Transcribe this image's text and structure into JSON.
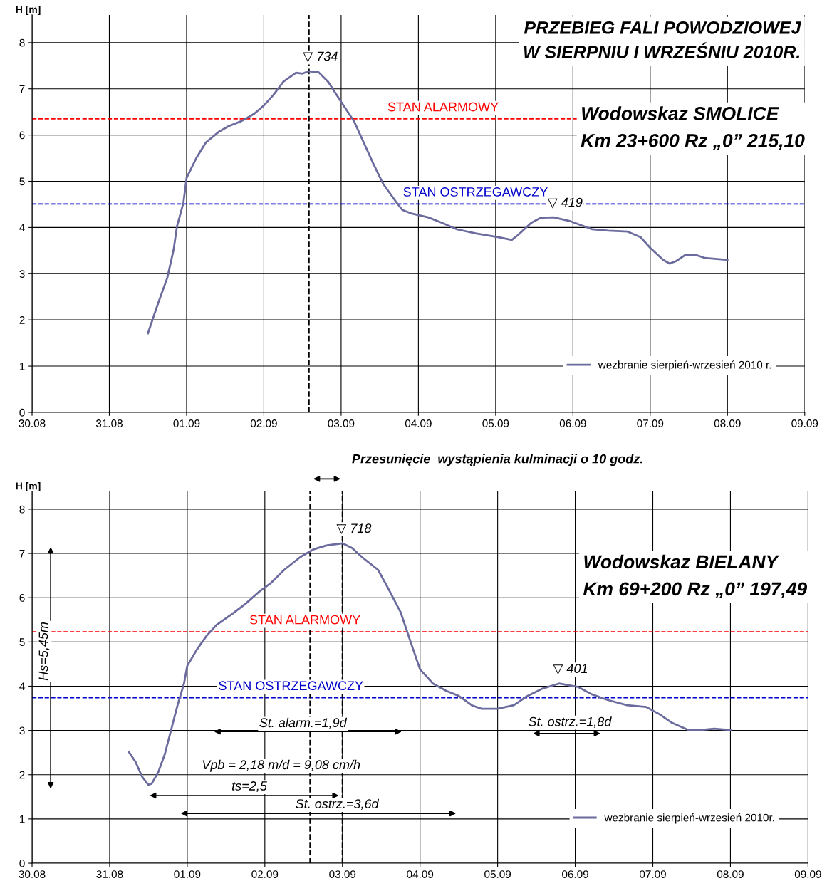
{
  "chart_data": [
    {
      "type": "line",
      "title": "PRZEBIEG FALI POWODZIOWEJ\nW SIERPNIU I WRZEŚNIU 2010R.",
      "subtitle": "Wodowskaz SMOLICE\nKm 23+600 Rz „0” 215,10",
      "ylabel": "H [m]",
      "xlim": [
        "2010-08-30",
        "2010-09-09"
      ],
      "ylim": [
        0,
        8.6
      ],
      "xticks": [
        {
          "value": "2010-08-30",
          "label": "30.08"
        },
        {
          "value": "2010-08-31",
          "label": "31.08"
        },
        {
          "value": "2010-09-01",
          "label": "01.09"
        },
        {
          "value": "2010-09-02",
          "label": "02.09"
        },
        {
          "value": "2010-09-03",
          "label": "03.09"
        },
        {
          "value": "2010-09-04",
          "label": "04.09"
        },
        {
          "value": "2010-09-05",
          "label": "05.09"
        },
        {
          "value": "2010-09-06",
          "label": "06.09"
        },
        {
          "value": "2010-09-07",
          "label": "07.09"
        },
        {
          "value": "2010-09-08",
          "label": "08.09"
        },
        {
          "value": "2010-09-09",
          "label": "09.09"
        }
      ],
      "yticks": [
        0,
        1,
        2,
        3,
        4,
        5,
        6,
        7,
        8
      ],
      "grid": true,
      "legend": "lower right",
      "marker": "none",
      "line_style": "solid",
      "series": [
        {
          "name": "wezbranie sierpień-wrzesień 2010 r.",
          "color": "#6b6b9e",
          "x": [
            "2010-08-31T12:00",
            "2010-08-31T15:00",
            "2010-08-31T18:00",
            "2010-08-31T20:00",
            "2010-08-31T21:00",
            "2010-08-31T23:00",
            "2010-09-01T00:00",
            "2010-09-01T03:00",
            "2010-09-01T06:00",
            "2010-09-01T10:00",
            "2010-09-01T13:00",
            "2010-09-01T17:00",
            "2010-09-01T21:00",
            "2010-09-02T00:00",
            "2010-09-02T03:00",
            "2010-09-02T06:00",
            "2010-09-02T10:00",
            "2010-09-02T12:00",
            "2010-09-02T14:00",
            "2010-09-02T17:00",
            "2010-09-02T20:00",
            "2010-09-03T00:00",
            "2010-09-03T04:00",
            "2010-09-03T07:00",
            "2010-09-03T10:00",
            "2010-09-03T13:00",
            "2010-09-03T17:00",
            "2010-09-03T19:00",
            "2010-09-03T22:00",
            "2010-09-04T03:00",
            "2010-09-04T07:00",
            "2010-09-04T12:00",
            "2010-09-04T18:00",
            "2010-09-05T01:00",
            "2010-09-05T05:00",
            "2010-09-05T07:00",
            "2010-09-05T11:00",
            "2010-09-05T14:00",
            "2010-09-05T18:00",
            "2010-09-05T23:00",
            "2010-09-06T06:00",
            "2010-09-06T11:00",
            "2010-09-06T17:00",
            "2010-09-06T21:00",
            "2010-09-07T00:00",
            "2010-09-07T04:00",
            "2010-09-07T06:00",
            "2010-09-07T08:00",
            "2010-09-07T11:00",
            "2010-09-07T14:00",
            "2010-09-07T17:00",
            "2010-09-08T00:00"
          ],
          "values": [
            1.71,
            2.33,
            2.91,
            3.53,
            4.02,
            4.53,
            5.07,
            5.5,
            5.84,
            6.07,
            6.19,
            6.3,
            6.46,
            6.64,
            6.87,
            7.15,
            7.35,
            7.33,
            7.38,
            7.36,
            7.15,
            6.72,
            6.3,
            5.84,
            5.38,
            4.95,
            4.56,
            4.38,
            4.3,
            4.22,
            4.11,
            3.96,
            3.87,
            3.79,
            3.73,
            3.84,
            4.1,
            4.21,
            4.22,
            4.14,
            3.96,
            3.93,
            3.91,
            3.79,
            3.56,
            3.3,
            3.22,
            3.27,
            3.41,
            3.41,
            3.34,
            3.3
          ]
        }
      ],
      "ref_lines": [
        {
          "axis": "y",
          "value": 6.35,
          "label": "STAN ALARMOWY",
          "color": "#ff0000",
          "line_style": "dashed"
        },
        {
          "axis": "y",
          "value": 4.51,
          "label": "STAN OSTRZEGAWCZY",
          "color": "#0000cc",
          "line_style": "dashed"
        },
        {
          "axis": "x",
          "value": "2010-09-02T14:00",
          "color": "#000000",
          "line_style": "dashed"
        }
      ],
      "annotations": [
        {
          "text": "▽ 734",
          "x": "2010-09-02T14:00",
          "y": 7.38
        },
        {
          "text": "▽ 419",
          "x": "2010-09-05T18:00",
          "y": 4.22
        }
      ]
    },
    {
      "type": "line",
      "title": "Wodowskaz BIELANY\nKm 69+200 Rz „0” 197,49",
      "ylabel": "H [m]",
      "xlim": [
        "2010-08-30",
        "2010-09-09"
      ],
      "ylim": [
        0,
        8.4
      ],
      "xticks": [
        {
          "value": "2010-08-30",
          "label": "30.08"
        },
        {
          "value": "2010-08-31",
          "label": "31.08"
        },
        {
          "value": "2010-09-01",
          "label": "01.09"
        },
        {
          "value": "2010-09-02",
          "label": "02.09"
        },
        {
          "value": "2010-09-03",
          "label": "03.09"
        },
        {
          "value": "2010-09-04",
          "label": "04.09"
        },
        {
          "value": "2010-09-05",
          "label": "05.09"
        },
        {
          "value": "2010-09-06",
          "label": "06.09"
        },
        {
          "value": "2010-09-07",
          "label": "07.09"
        },
        {
          "value": "2010-09-08",
          "label": "08.09"
        },
        {
          "value": "2010-09-09",
          "label": "09.09"
        }
      ],
      "yticks": [
        0,
        1,
        2,
        3,
        4,
        5,
        6,
        7,
        8
      ],
      "grid": true,
      "legend": "lower right",
      "marker": "none",
      "line_style": "solid",
      "series": [
        {
          "name": "wezbranie sierpień-wrzesień 2010r.",
          "color": "#6b6b9e",
          "x": [
            "2010-08-31T06:00",
            "2010-08-31T08:00",
            "2010-08-31T10:00",
            "2010-08-31T12:00",
            "2010-08-31T13:00",
            "2010-08-31T15:00",
            "2010-08-31T17:00",
            "2010-08-31T19:00",
            "2010-08-31T21:00",
            "2010-08-31T23:00",
            "2010-09-01T00:00",
            "2010-09-01T03:00",
            "2010-09-01T06:00",
            "2010-09-01T09:00",
            "2010-09-01T14:00",
            "2010-09-01T18:00",
            "2010-09-01T22:00",
            "2010-09-02T02:00",
            "2010-09-02T06:00",
            "2010-09-02T11:00",
            "2010-09-02T15:00",
            "2010-09-02T19:00",
            "2010-09-03T00:00",
            "2010-09-03T03:00",
            "2010-09-03T06:00",
            "2010-09-03T11:00",
            "2010-09-03T14:00",
            "2010-09-03T18:00",
            "2010-09-03T21:00",
            "2010-09-04T00:00",
            "2010-09-04T04:00",
            "2010-09-04T08:00",
            "2010-09-04T12:00",
            "2010-09-04T16:00",
            "2010-09-04T19:00",
            "2010-09-05T00:00",
            "2010-09-05T05:00",
            "2010-09-05T09:00",
            "2010-09-05T14:00",
            "2010-09-05T19:00",
            "2010-09-06T01:00",
            "2010-09-06T05:00",
            "2010-09-06T10:00",
            "2010-09-06T16:00",
            "2010-09-06T22:00",
            "2010-09-07T02:00",
            "2010-09-07T06:00",
            "2010-09-07T11:00",
            "2010-09-07T15:00",
            "2010-09-07T19:00",
            "2010-09-08T00:00"
          ],
          "values": [
            2.51,
            2.29,
            1.96,
            1.77,
            1.8,
            2.05,
            2.45,
            3.01,
            3.57,
            4.06,
            4.46,
            4.83,
            5.14,
            5.38,
            5.64,
            5.86,
            6.12,
            6.34,
            6.63,
            6.92,
            7.09,
            7.18,
            7.23,
            7.12,
            6.92,
            6.63,
            6.23,
            5.67,
            5.02,
            4.38,
            4.06,
            3.9,
            3.78,
            3.57,
            3.49,
            3.49,
            3.57,
            3.77,
            3.95,
            4.06,
            3.98,
            3.82,
            3.69,
            3.57,
            3.53,
            3.37,
            3.17,
            3.01,
            3.01,
            3.04,
            3.01
          ]
        }
      ],
      "ref_lines": [
        {
          "axis": "y",
          "value": 5.23,
          "label": "STAN ALARMOWY",
          "color": "#ff0000",
          "line_style": "dashed"
        },
        {
          "axis": "y",
          "value": 3.74,
          "label": "STAN OSTRZEGAWCZY",
          "color": "#0000cc",
          "line_style": "dashed"
        },
        {
          "axis": "x",
          "value": "2010-09-02T14:00",
          "color": "#000000",
          "line_style": "dashed"
        },
        {
          "axis": "x",
          "value": "2010-09-03T00:00",
          "color": "#000000",
          "line_style": "dashed"
        }
      ],
      "annotations": [
        "Przesunięcie  wystąpienia kulminacji o 10 godz.",
        "Hs=5,45m",
        {
          "text": "▽ 718",
          "x": "2010-09-03T00:00",
          "y": 7.23
        },
        {
          "text": "▽ 401",
          "x": "2010-09-05T19:00",
          "y": 4.06
        },
        "St. alarm.=1,9d",
        "St. ostrz.=1,8d",
        "Vpb = 2,18 m/d = 9,08 cm/h",
        "ts=2,5",
        "St. ostrz.=3,6d"
      ]
    }
  ]
}
